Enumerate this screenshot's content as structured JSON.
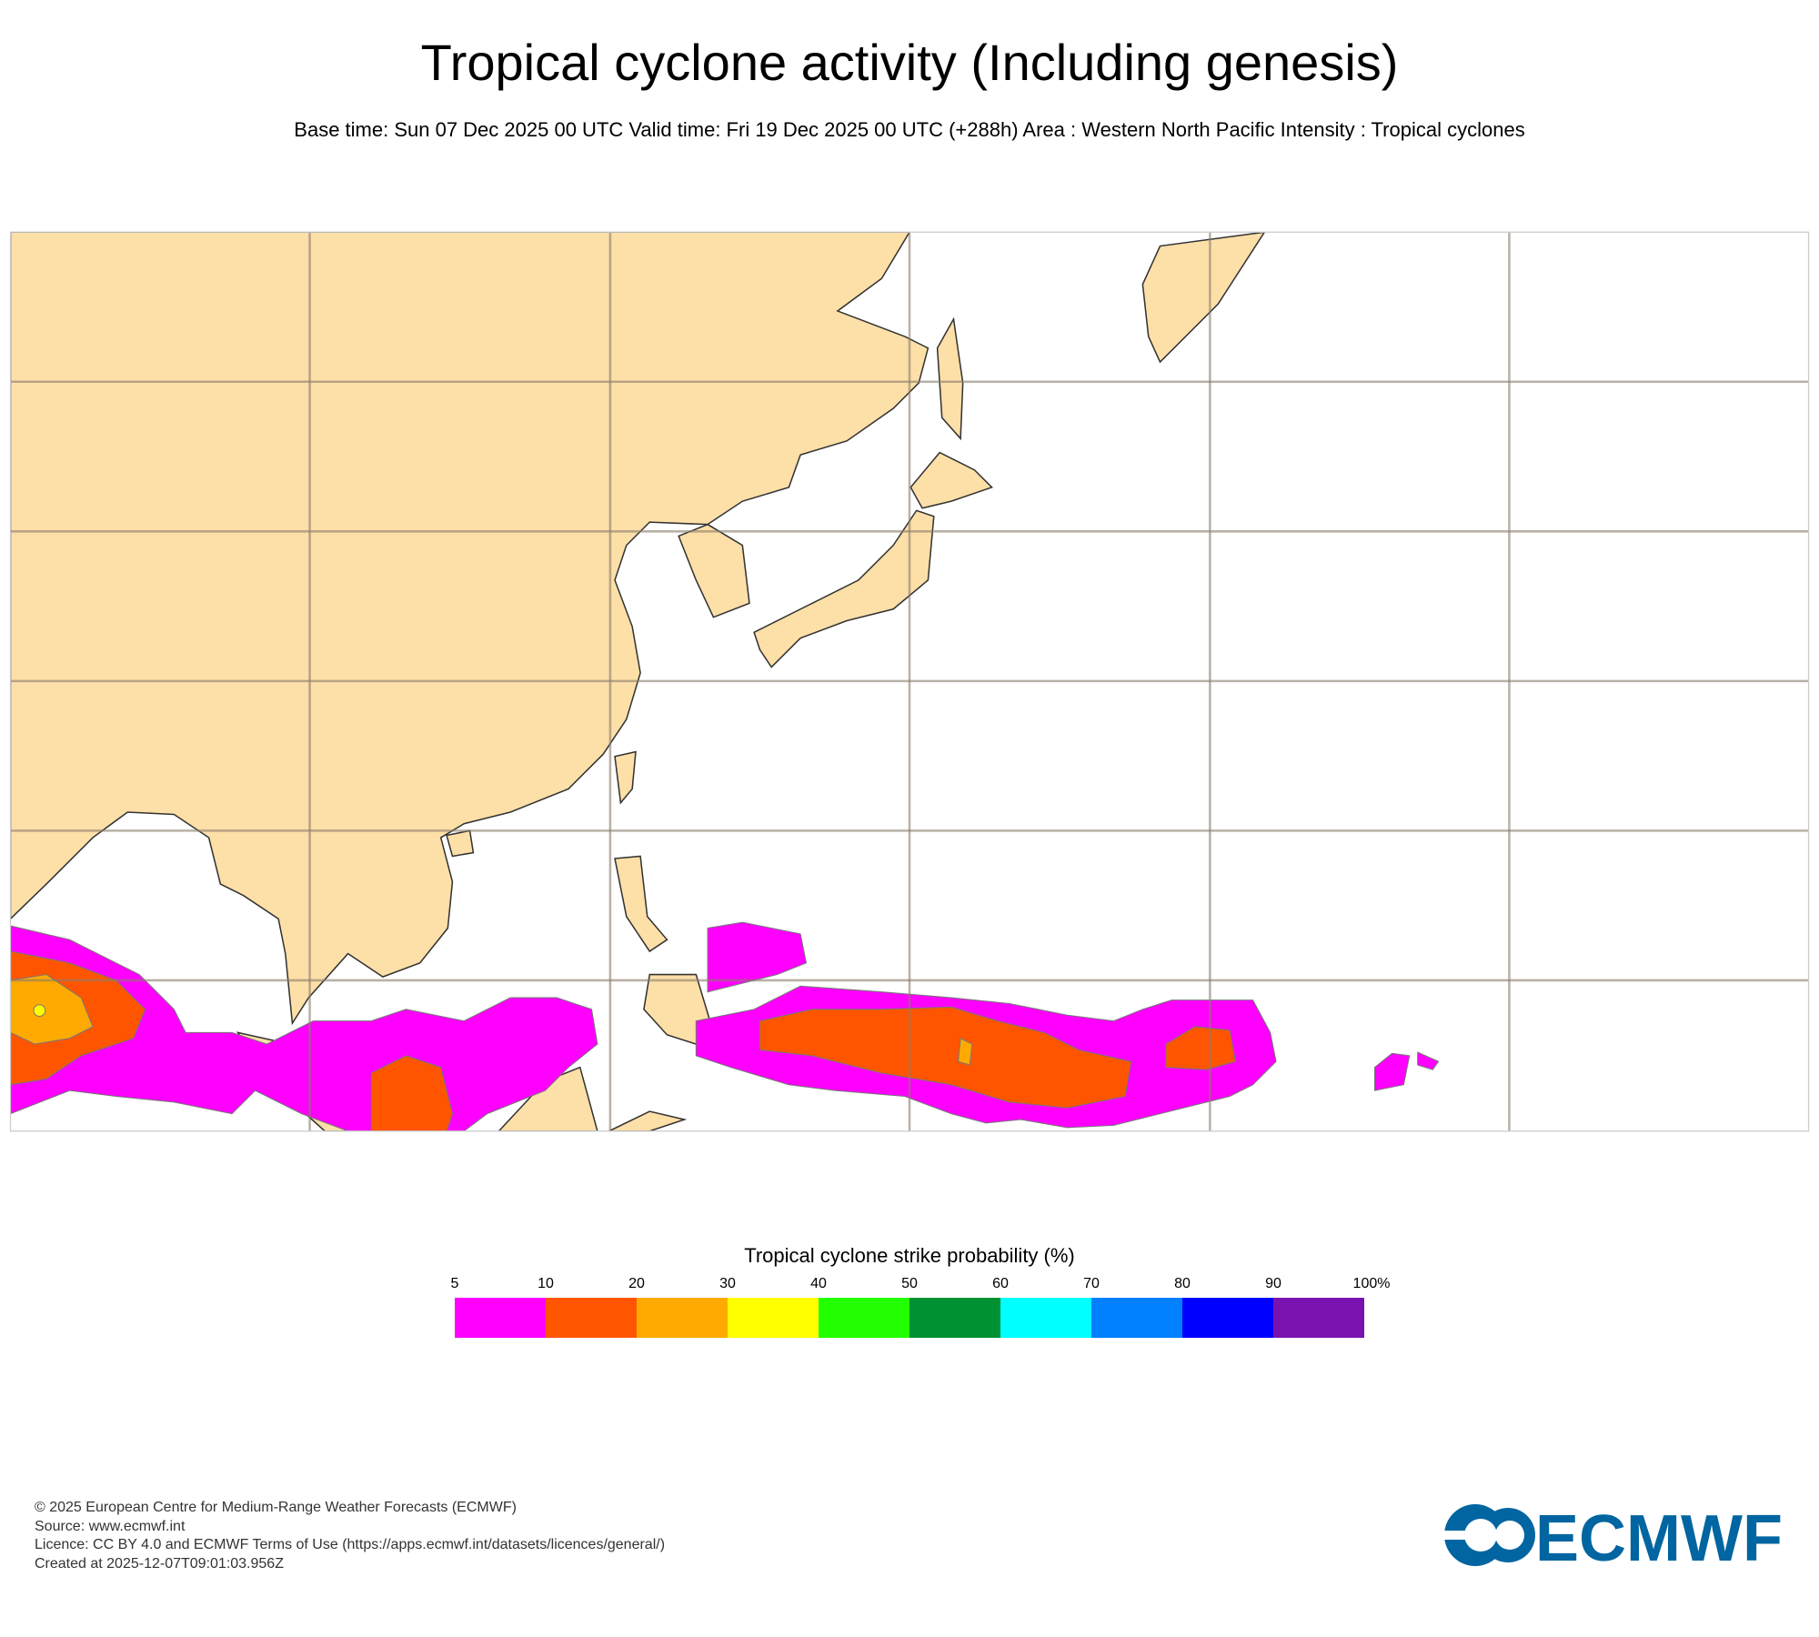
{
  "header": {
    "title": "Tropical cyclone activity (Including genesis)",
    "subtitle": "Base time: Sun 07 Dec 2025 00 UTC Valid time: Fri 19 Dec 2025 00 UTC (+288h) Area : Western North Pacific Intensity : Tropical cyclones"
  },
  "map": {
    "area": "Western North Pacific",
    "land_color": "#fddfa8",
    "sea_color": "#ffffff",
    "grid": true,
    "probability_colors_shown": {
      "5-10": "#ff00ff",
      "10-20": "#ff5500",
      "20-30": "#ffaa00",
      "30-40": "#ffff00"
    }
  },
  "legend": {
    "title": "Tropical cyclone strike probability (%)",
    "ticks": [
      "5",
      "10",
      "20",
      "30",
      "40",
      "50",
      "60",
      "70",
      "80",
      "90",
      "100%"
    ],
    "colors": [
      "#ff00ff",
      "#ff5500",
      "#ffaa00",
      "#ffff00",
      "#22ff00",
      "#009133",
      "#00ffff",
      "#0080ff",
      "#0000ff",
      "#7a12b0"
    ]
  },
  "footer": {
    "lines": [
      "© 2025 European Centre for Medium-Range Weather Forecasts (ECMWF)",
      "Source: www.ecmwf.int",
      "Licence: CC BY 4.0 and ECMWF Terms of Use (https://apps.ecmwf.int/datasets/licences/general/)",
      "Created at 2025-12-07T09:01:03.956Z"
    ],
    "logo_text": "ECMWF",
    "logo_color": "#0065a0"
  }
}
